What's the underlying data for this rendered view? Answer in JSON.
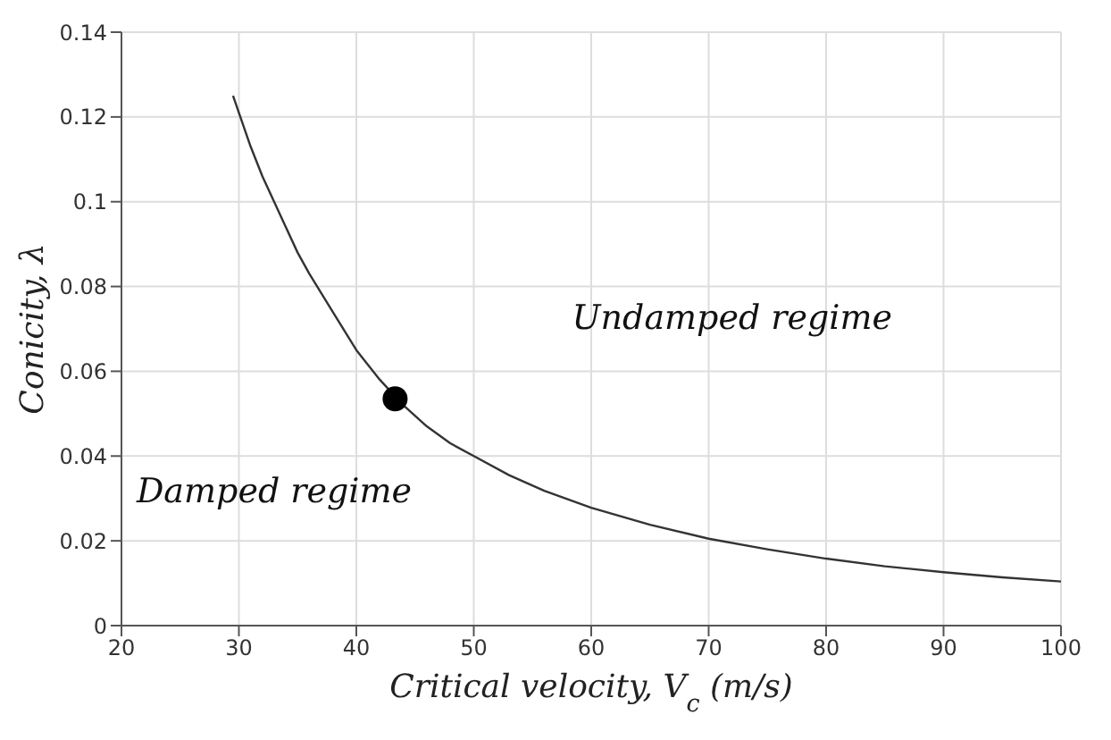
{
  "chart_data": {
    "type": "line",
    "xlabel": "Critical velocity, V$_{c}$ (m/s)",
    "ylabel": "Conicity, λ",
    "xlim": [
      20,
      100
    ],
    "xticks": [
      20,
      30,
      40,
      50,
      60,
      70,
      80,
      90,
      100
    ],
    "ylim": [
      0,
      0.14
    ],
    "yticks": [
      0,
      0.02,
      0.04,
      0.06,
      0.08,
      0.1,
      0.12,
      0.14
    ],
    "grid": true,
    "marker": "none",
    "line_style": "solid",
    "series": [
      {
        "color": "#333333",
        "x": [
          29.5,
          30,
          31,
          32,
          33,
          34,
          35,
          36,
          38,
          40,
          42,
          44,
          46,
          48,
          50,
          53,
          56,
          60,
          65,
          70,
          75,
          80,
          85,
          90,
          95,
          100
        ],
        "values": [
          0.125,
          0.121,
          0.113,
          0.106,
          0.1,
          0.094,
          0.088,
          0.083,
          0.074,
          0.065,
          0.058,
          0.052,
          0.047,
          0.043,
          0.04,
          0.0355,
          0.0318,
          0.0278,
          0.0238,
          0.0205,
          0.018,
          0.0158,
          0.014,
          0.0126,
          0.0114,
          0.0104
        ]
      },
      {
        "type": "scatter",
        "color": "#000000",
        "x": [
          43.3
        ],
        "values": [
          0.0535
        ],
        "marker": "circle"
      }
    ],
    "annotations": [
      "Undamped regime",
      "Damped regime"
    ]
  }
}
